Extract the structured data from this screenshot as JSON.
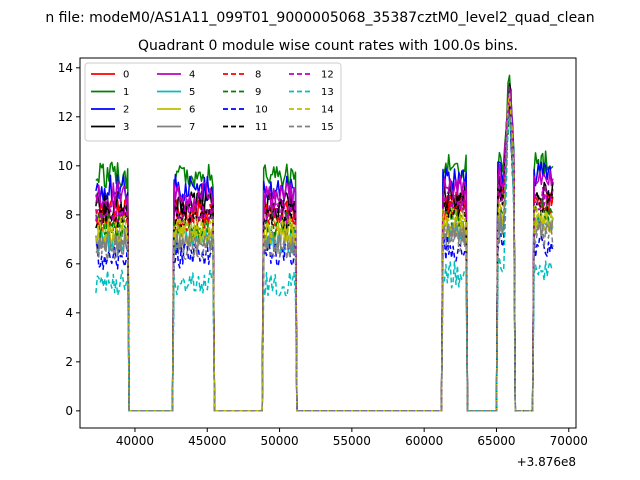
{
  "chart_data": {
    "type": "line",
    "suptitle": "n file: modeM0/AS1A11_099T01_9000005068_35387cztM0_level2_quad_clean",
    "title": "Quadrant 0 module wise count rates with 100.0s bins.",
    "xlabel": "",
    "ylabel": "",
    "x_offset_label": "+3.876e8",
    "xlim": [
      36200,
      70500
    ],
    "ylim": [
      -0.7,
      14.4
    ],
    "x_ticks": [
      40000,
      45000,
      50000,
      55000,
      60000,
      65000,
      70000
    ],
    "x_tick_labels": [
      "40000",
      "45000",
      "50000",
      "55000",
      "60000",
      "65000",
      "70000"
    ],
    "y_ticks": [
      0,
      2,
      4,
      6,
      8,
      10,
      12,
      14
    ],
    "y_tick_labels": [
      "0",
      "2",
      "4",
      "6",
      "8",
      "10",
      "12",
      "14"
    ],
    "legend_position": "top-left",
    "legend_columns": 4,
    "bin_seconds": 100,
    "active_segments": [
      [
        37300,
        39500
      ],
      [
        42700,
        45400
      ],
      [
        48900,
        51100
      ],
      [
        61300,
        62900
      ],
      [
        65100,
        66000
      ],
      [
        66100,
        66200
      ],
      [
        67600,
        68900
      ]
    ],
    "peak_time": 65900,
    "series": [
      {
        "name": "0",
        "level": 8.1,
        "color": "#ff0000",
        "dash": "solid"
      },
      {
        "name": "1",
        "level": 9.6,
        "color": "#008000",
        "dash": "solid"
      },
      {
        "name": "2",
        "level": 9.1,
        "color": "#0000ff",
        "dash": "solid"
      },
      {
        "name": "3",
        "level": 8.4,
        "color": "#000000",
        "dash": "solid"
      },
      {
        "name": "4",
        "level": 8.8,
        "color": "#bf00bf",
        "dash": "solid"
      },
      {
        "name": "5",
        "level": 7.0,
        "color": "#00bfbf",
        "dash": "solid"
      },
      {
        "name": "6",
        "level": 7.3,
        "color": "#bfbf00",
        "dash": "solid"
      },
      {
        "name": "7",
        "level": 6.9,
        "color": "#808080",
        "dash": "solid"
      },
      {
        "name": "8",
        "level": 7.9,
        "color": "#ff0000",
        "dash": "dashed"
      },
      {
        "name": "9",
        "level": 7.6,
        "color": "#008000",
        "dash": "dashed"
      },
      {
        "name": "10",
        "level": 6.3,
        "color": "#0000ff",
        "dash": "dashed"
      },
      {
        "name": "11",
        "level": 8.0,
        "color": "#000000",
        "dash": "dashed"
      },
      {
        "name": "12",
        "level": 8.2,
        "color": "#bf00bf",
        "dash": "dashed"
      },
      {
        "name": "13",
        "level": 5.2,
        "color": "#00bfbf",
        "dash": "dashed"
      },
      {
        "name": "14",
        "level": 7.4,
        "color": "#bfbf00",
        "dash": "dashed"
      },
      {
        "name": "15",
        "level": 6.7,
        "color": "#808080",
        "dash": "dashed"
      }
    ]
  }
}
